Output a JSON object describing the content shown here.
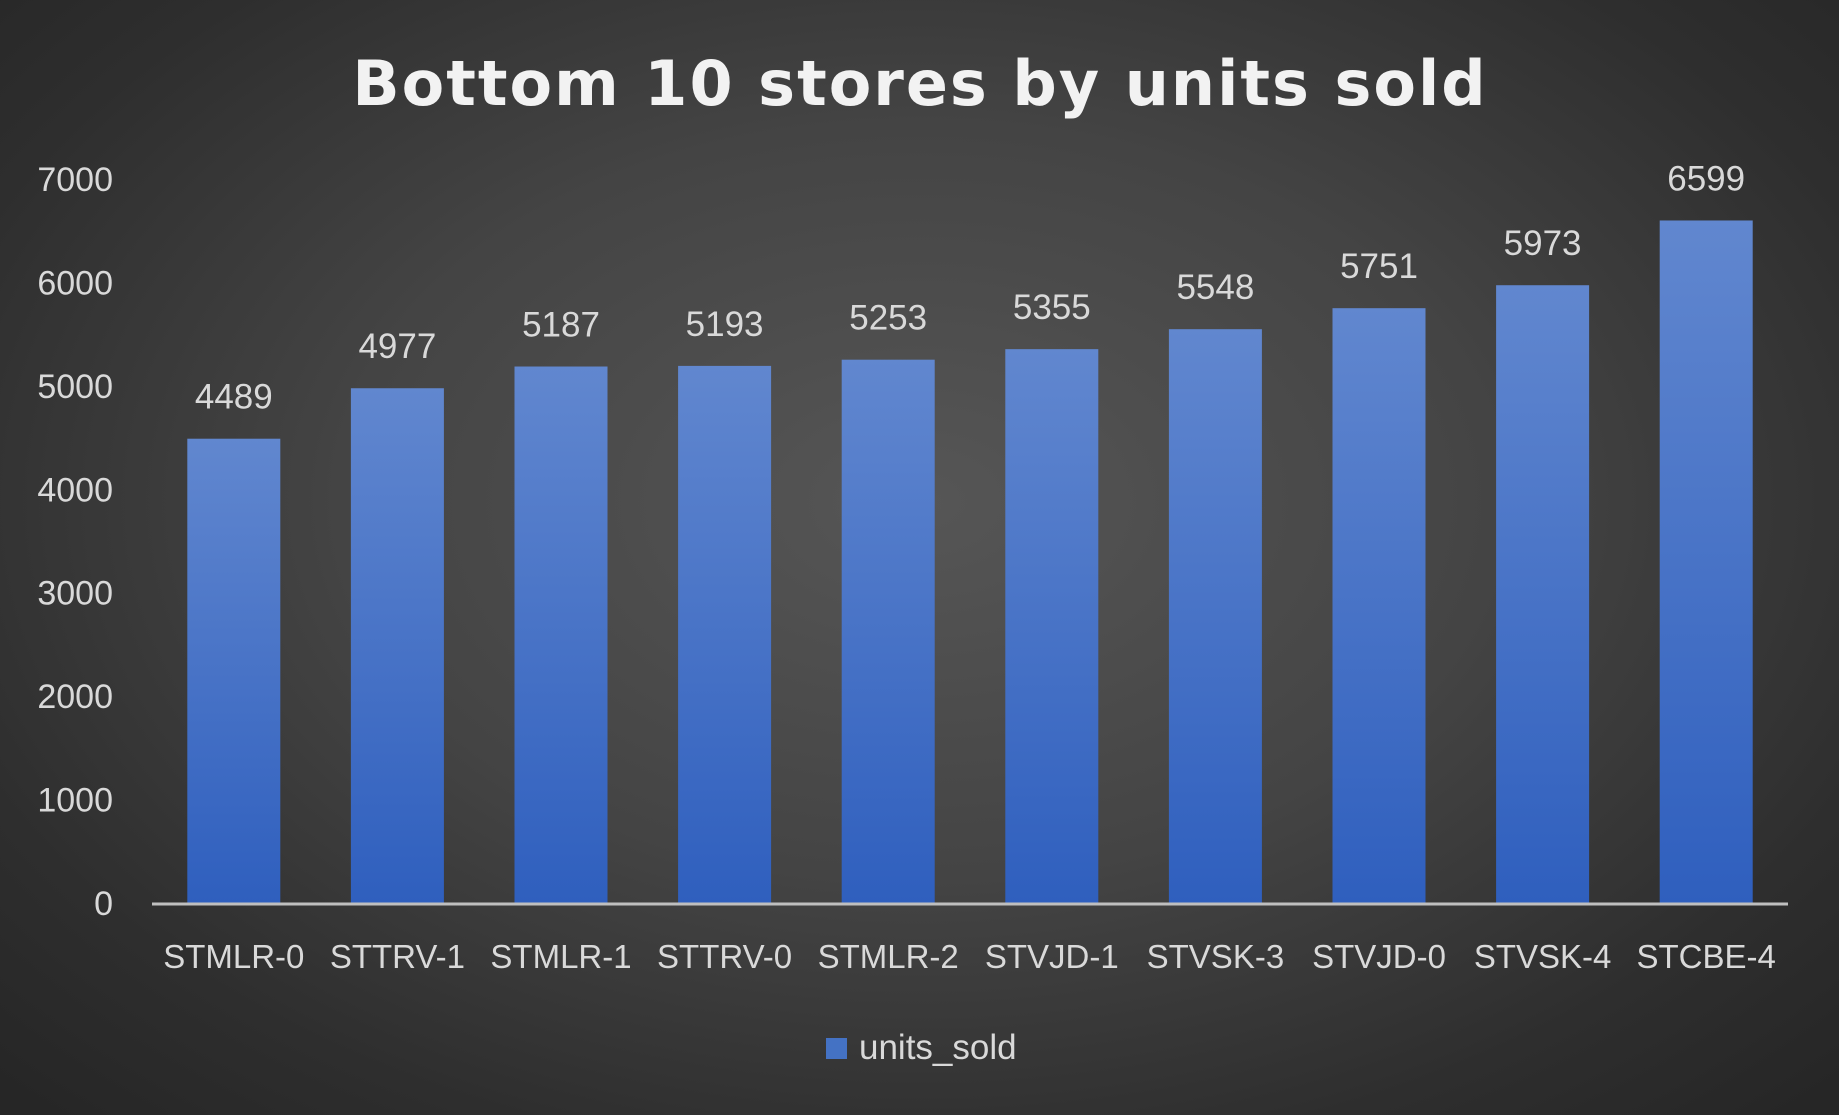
{
  "chart_data": {
    "type": "bar",
    "title": "Bottom 10 stores by units sold",
    "xlabel": "",
    "ylabel": "",
    "categories": [
      "STMLR-0",
      "STTRV-1",
      "STMLR-1",
      "STTRV-0",
      "STMLR-2",
      "STVJD-1",
      "STVSK-3",
      "STVJD-0",
      "STVSK-4",
      "STCBE-4"
    ],
    "series": [
      {
        "name": "units_sold",
        "values": [
          4489,
          4977,
          5187,
          5193,
          5253,
          5355,
          5548,
          5751,
          5973,
          6599
        ],
        "color": "#4472C4"
      }
    ],
    "ylim": [
      0,
      7000
    ],
    "yticks": [
      0,
      1000,
      2000,
      3000,
      4000,
      5000,
      6000,
      7000
    ],
    "grid": false,
    "data_labels": true,
    "legend": "bottom-center"
  }
}
